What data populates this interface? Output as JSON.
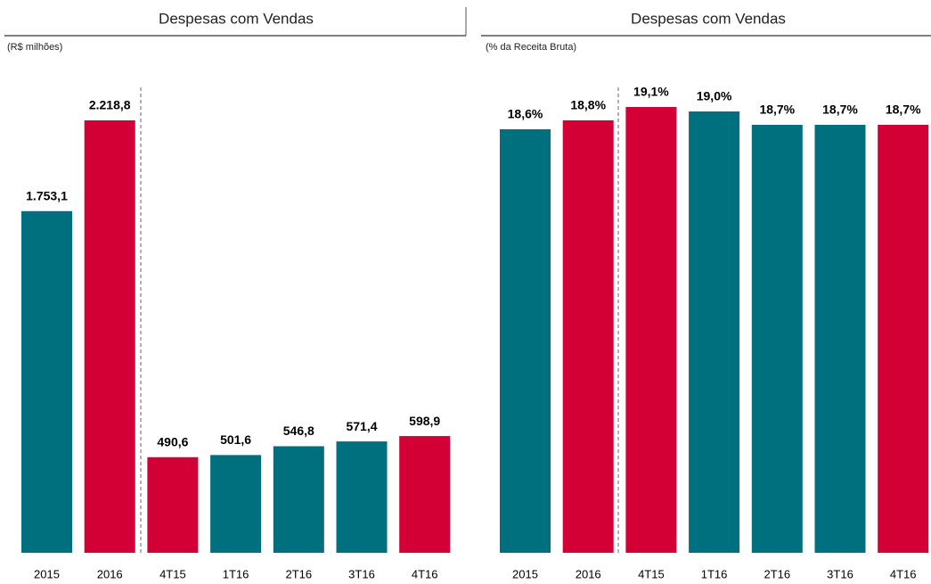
{
  "chart_data": [
    {
      "type": "bar",
      "title": "Despesas com Vendas",
      "subtitle": "(R$ milhões)",
      "categories": [
        "2015",
        "2016",
        "4T15",
        "1T16",
        "2T16",
        "3T16",
        "4T16"
      ],
      "values": [
        1753.1,
        2218.8,
        490.6,
        501.6,
        546.8,
        571.4,
        598.9
      ],
      "value_labels": [
        "1.753,1",
        "2.218,8",
        "490,6",
        "501,6",
        "546,8",
        "571,4",
        "598,9"
      ],
      "colors": [
        "#00707f",
        "#d20035",
        "#d20035",
        "#00707f",
        "#00707f",
        "#00707f",
        "#d20035"
      ],
      "ylim": [
        0,
        2356
      ]
    },
    {
      "type": "bar",
      "title": "Despesas com Vendas",
      "subtitle": "(% da Receita Bruta)",
      "categories": [
        "2015",
        "2016",
        "4T15",
        "1T16",
        "2T16",
        "3T16",
        "4T16"
      ],
      "values": [
        18.6,
        18.8,
        19.1,
        19.0,
        18.7,
        18.7,
        18.7
      ],
      "value_labels": [
        "18,6%",
        "18,8%",
        "19,1%",
        "19,0%",
        "18,7%",
        "18,7%",
        "18,7%"
      ],
      "colors": [
        "#00707f",
        "#d20035",
        "#d20035",
        "#00707f",
        "#00707f",
        "#00707f",
        "#d20035"
      ],
      "ylim": [
        9.1,
        19.4
      ]
    }
  ]
}
